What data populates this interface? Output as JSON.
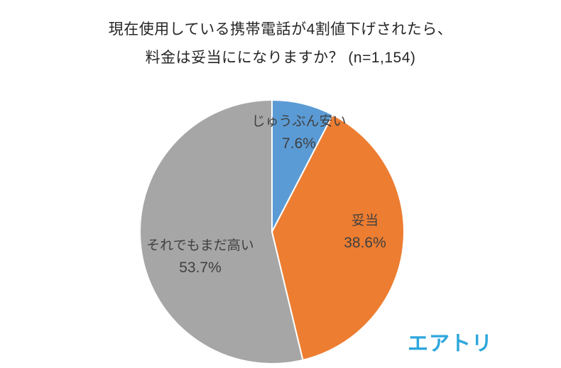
{
  "title": {
    "line1": "現在使用している携帯電話が4割値下げされたら、",
    "line2": "料金は妥当にになりますか？ (n=1,154)"
  },
  "logo": "エアトリ",
  "chart_data": {
    "type": "pie",
    "title": "現在使用している携帯電話が4割値下げされたら、料金は妥当にになりますか？ (n=1,154)",
    "sample_size": "n=1,154",
    "start_angle_deg": 0,
    "direction": "clockwise",
    "legend_position": "labels-on-chart",
    "slices": [
      {
        "label": "じゅうぶん安い",
        "value": 7.6,
        "pct_label": "7.6%",
        "color": "#5b9bd5"
      },
      {
        "label": "妥当",
        "value": 38.6,
        "pct_label": "38.6%",
        "color": "#ed7d31"
      },
      {
        "label": "それでもまだ高い",
        "value": 53.7,
        "pct_label": "53.7%",
        "color": "#a6a6a6"
      }
    ]
  }
}
